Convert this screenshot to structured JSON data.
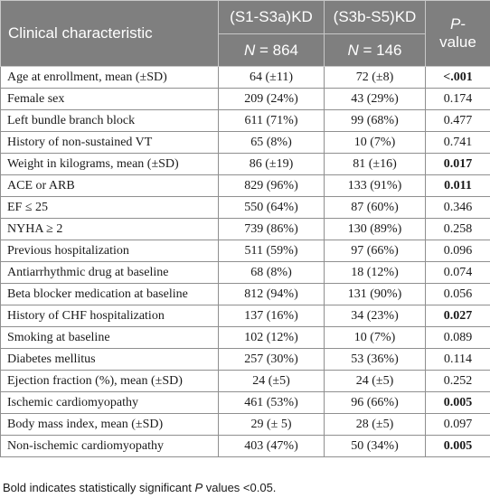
{
  "header": {
    "characteristic": "Clinical characteristic",
    "group1": "(S1-S3a)KD",
    "group2": "(S3b-S5)KD",
    "pvalue_italic": "P",
    "pvalue_rest": "-value",
    "n_italic": "N",
    "n_eq": " = ",
    "group1_n": "864",
    "group2_n": "146"
  },
  "rows": [
    {
      "label": "Age at enrollment, mean (±SD)",
      "g1": "64 (±11)",
      "g2": "72 (±8)",
      "p": "<.001",
      "bold": true
    },
    {
      "label": "Female sex",
      "g1": "209 (24%)",
      "g2": "43 (29%)",
      "p": "0.174",
      "bold": false
    },
    {
      "label": "Left bundle branch block",
      "g1": "611 (71%)",
      "g2": "99 (68%)",
      "p": "0.477",
      "bold": false
    },
    {
      "label": "History of non-sustained VT",
      "g1": "65 (8%)",
      "g2": "10 (7%)",
      "p": "0.741",
      "bold": false
    },
    {
      "label": "Weight in kilograms, mean (±SD)",
      "g1": "86 (±19)",
      "g2": "81 (±16)",
      "p": "0.017",
      "bold": true
    },
    {
      "label": "ACE or ARB",
      "g1": "829 (96%)",
      "g2": "133 (91%)",
      "p": "0.011",
      "bold": true
    },
    {
      "label": "EF ≤ 25",
      "g1": "550 (64%)",
      "g2": "87 (60%)",
      "p": "0.346",
      "bold": false
    },
    {
      "label": "NYHA ≥ 2",
      "g1": "739 (86%)",
      "g2": "130 (89%)",
      "p": "0.258",
      "bold": false
    },
    {
      "label": "Previous hospitalization",
      "g1": "511 (59%)",
      "g2": "97 (66%)",
      "p": "0.096",
      "bold": false
    },
    {
      "label": "Antiarrhythmic drug at baseline",
      "g1": "68 (8%)",
      "g2": "18 (12%)",
      "p": "0.074",
      "bold": false
    },
    {
      "label": "Beta blocker medication at baseline",
      "g1": "812 (94%)",
      "g2": "131 (90%)",
      "p": "0.056",
      "bold": false
    },
    {
      "label": "History of CHF hospitalization",
      "g1": "137 (16%)",
      "g2": "34 (23%)",
      "p": "0.027",
      "bold": true
    },
    {
      "label": "Smoking at baseline",
      "g1": "102 (12%)",
      "g2": "10 (7%)",
      "p": "0.089",
      "bold": false
    },
    {
      "label": "Diabetes mellitus",
      "g1": "257 (30%)",
      "g2": "53 (36%)",
      "p": "0.114",
      "bold": false
    },
    {
      "label": "Ejection fraction (%), mean (±SD)",
      "g1": "24 (±5)",
      "g2": "24 (±5)",
      "p": "0.252",
      "bold": false
    },
    {
      "label": "Ischemic cardiomyopathy",
      "g1": "461 (53%)",
      "g2": "96 (66%)",
      "p": "0.005",
      "bold": true
    },
    {
      "label": "Body mass index, mean (±SD)",
      "g1": "29 (± 5)",
      "g2": "28 (±5)",
      "p": "0.097",
      "bold": false
    },
    {
      "label": "Non-ischemic cardiomyopathy",
      "g1": "403 (47%)",
      "g2": "50 (34%)",
      "p": "0.005",
      "bold": true
    }
  ],
  "footnote": {
    "before": "Bold indicates statistically significant ",
    "italic": "P",
    "after": " values <0.05."
  }
}
